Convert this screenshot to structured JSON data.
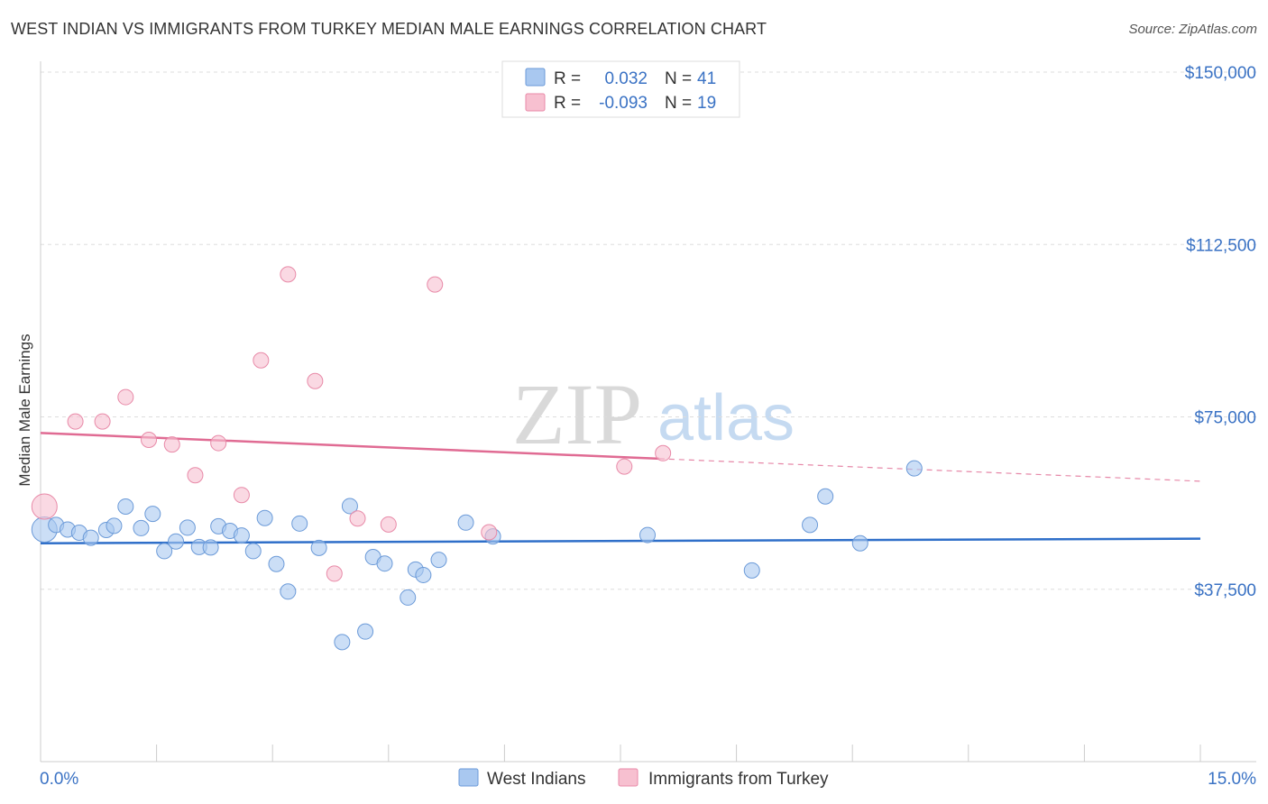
{
  "title": "WEST INDIAN VS IMMIGRANTS FROM TURKEY MEDIAN MALE EARNINGS CORRELATION CHART",
  "source": "Source: ZipAtlas.com",
  "watermark": {
    "zip": "ZIP",
    "atlas": "atlas"
  },
  "chart_data": {
    "type": "scatter",
    "xlabel": "",
    "ylabel": "Median Male Earnings",
    "xlim": [
      0,
      15
    ],
    "ylim": [
      0,
      155000
    ],
    "x_tick_labels": [
      "0.0%",
      "15.0%"
    ],
    "y_ticks": [
      {
        "value": 37500,
        "label": "$37,500"
      },
      {
        "value": 75000,
        "label": "$75,000"
      },
      {
        "value": 112500,
        "label": "$112,500"
      },
      {
        "value": 150000,
        "label": "$150,000"
      }
    ],
    "legend": [
      {
        "r_label": "R =",
        "r_value": "0.032",
        "n_label": "N =",
        "n_value": "41",
        "color": "#a9c8f0",
        "stroke": "#6b9ad8"
      },
      {
        "r_label": "R =",
        "r_value": "-0.093",
        "n_label": "N =",
        "n_value": "19",
        "color": "#f7c0d0",
        "stroke": "#e88aa8"
      }
    ],
    "series": [
      {
        "name": "West Indians",
        "color": "#a9c8f0",
        "stroke": "#6b9ad8",
        "line_color": "#2f6fc9",
        "trend": {
          "x0": 0.0,
          "y0": 47500,
          "x1": 15.0,
          "y1": 48500,
          "solid_to": 15.0
        },
        "points": [
          {
            "x": 0.05,
            "y": 50500,
            "r": 14
          },
          {
            "x": 0.2,
            "y": 51500
          },
          {
            "x": 0.35,
            "y": 50500
          },
          {
            "x": 0.5,
            "y": 49800
          },
          {
            "x": 0.65,
            "y": 48700
          },
          {
            "x": 0.85,
            "y": 50400
          },
          {
            "x": 0.95,
            "y": 51300
          },
          {
            "x": 1.1,
            "y": 55500
          },
          {
            "x": 1.3,
            "y": 50800
          },
          {
            "x": 1.45,
            "y": 53900
          },
          {
            "x": 1.6,
            "y": 45800
          },
          {
            "x": 1.75,
            "y": 47900
          },
          {
            "x": 1.9,
            "y": 50900
          },
          {
            "x": 2.05,
            "y": 46700
          },
          {
            "x": 2.2,
            "y": 46600
          },
          {
            "x": 2.3,
            "y": 51200
          },
          {
            "x": 2.45,
            "y": 50200
          },
          {
            "x": 2.6,
            "y": 49200
          },
          {
            "x": 2.75,
            "y": 45800
          },
          {
            "x": 2.9,
            "y": 53000
          },
          {
            "x": 3.05,
            "y": 43000
          },
          {
            "x": 3.2,
            "y": 37000
          },
          {
            "x": 3.35,
            "y": 51800
          },
          {
            "x": 3.6,
            "y": 46500
          },
          {
            "x": 3.9,
            "y": 26000
          },
          {
            "x": 4.0,
            "y": 55600
          },
          {
            "x": 4.2,
            "y": 28300
          },
          {
            "x": 4.3,
            "y": 44500
          },
          {
            "x": 4.45,
            "y": 43100
          },
          {
            "x": 4.75,
            "y": 35700
          },
          {
            "x": 4.85,
            "y": 41800
          },
          {
            "x": 4.95,
            "y": 40600
          },
          {
            "x": 5.15,
            "y": 43900
          },
          {
            "x": 5.5,
            "y": 52000
          },
          {
            "x": 5.85,
            "y": 49000
          },
          {
            "x": 7.85,
            "y": 49300
          },
          {
            "x": 9.2,
            "y": 41600
          },
          {
            "x": 9.95,
            "y": 51500
          },
          {
            "x": 10.15,
            "y": 57700
          },
          {
            "x": 10.6,
            "y": 47500
          },
          {
            "x": 11.3,
            "y": 63800
          }
        ]
      },
      {
        "name": "Immigrants from Turkey",
        "color": "#f7c0d0",
        "stroke": "#e88aa8",
        "line_color": "#e06b93",
        "trend": {
          "x0": 0.0,
          "y0": 71500,
          "x1": 15.0,
          "y1": 61000,
          "solid_to": 8.0
        },
        "points": [
          {
            "x": 0.05,
            "y": 55500,
            "r": 14
          },
          {
            "x": 0.45,
            "y": 74000
          },
          {
            "x": 0.8,
            "y": 74000
          },
          {
            "x": 1.1,
            "y": 79300
          },
          {
            "x": 1.4,
            "y": 70000
          },
          {
            "x": 1.7,
            "y": 69000
          },
          {
            "x": 2.0,
            "y": 62300
          },
          {
            "x": 2.3,
            "y": 69300
          },
          {
            "x": 2.6,
            "y": 58000
          },
          {
            "x": 2.85,
            "y": 87300
          },
          {
            "x": 3.2,
            "y": 106000
          },
          {
            "x": 3.55,
            "y": 82800
          },
          {
            "x": 3.8,
            "y": 40900
          },
          {
            "x": 4.1,
            "y": 52900
          },
          {
            "x": 4.5,
            "y": 51600
          },
          {
            "x": 5.1,
            "y": 103800
          },
          {
            "x": 5.8,
            "y": 49900
          },
          {
            "x": 7.55,
            "y": 64200
          },
          {
            "x": 8.05,
            "y": 67100
          }
        ]
      }
    ]
  }
}
